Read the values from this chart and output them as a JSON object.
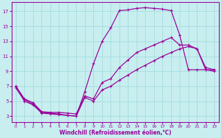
{
  "xlabel": "Windchill (Refroidissement éolien,°C)",
  "bg_color": "#c8eef0",
  "grid_color": "#a8dde0",
  "line_color": "#990099",
  "xlim": [
    -0.5,
    23.5
  ],
  "ylim": [
    2.2,
    18.2
  ],
  "xticks": [
    0,
    1,
    2,
    3,
    4,
    5,
    6,
    7,
    8,
    9,
    10,
    11,
    12,
    13,
    14,
    15,
    16,
    17,
    18,
    19,
    20,
    21,
    22,
    23
  ],
  "yticks": [
    3,
    5,
    7,
    9,
    11,
    13,
    15,
    17
  ],
  "line1_x": [
    0,
    1,
    2,
    3,
    4,
    5,
    6,
    7,
    8,
    9,
    10,
    11,
    12,
    13,
    14,
    15,
    16,
    17,
    18,
    19,
    20,
    21,
    22,
    23
  ],
  "line1_y": [
    7.0,
    5.2,
    4.6,
    3.5,
    3.4,
    3.3,
    3.1,
    3.0,
    6.3,
    10.0,
    13.0,
    14.8,
    17.1,
    17.2,
    17.4,
    17.5,
    17.4,
    17.3,
    17.1,
    13.8,
    9.2,
    9.2,
    9.2,
    9.2
  ],
  "line2_x": [
    0,
    1,
    2,
    3,
    4,
    5,
    6,
    7,
    8,
    9,
    10,
    11,
    12,
    13,
    14,
    15,
    16,
    17,
    18,
    19,
    20,
    21,
    22,
    23
  ],
  "line2_y": [
    7.0,
    5.3,
    4.8,
    3.6,
    3.5,
    3.5,
    3.4,
    3.3,
    5.7,
    5.3,
    7.5,
    8.0,
    9.5,
    10.5,
    11.5,
    12.0,
    12.5,
    13.0,
    13.5,
    12.5,
    12.5,
    12.0,
    9.5,
    9.2
  ],
  "line3_x": [
    0,
    1,
    2,
    3,
    4,
    5,
    6,
    7,
    8,
    9,
    10,
    11,
    12,
    13,
    14,
    15,
    16,
    17,
    18,
    19,
    20,
    21,
    22,
    23
  ],
  "line3_y": [
    6.8,
    5.0,
    4.5,
    3.4,
    3.3,
    3.2,
    3.1,
    3.0,
    5.5,
    5.0,
    6.5,
    7.0,
    7.8,
    8.5,
    9.2,
    9.8,
    10.4,
    11.0,
    11.5,
    12.0,
    12.3,
    12.0,
    9.2,
    9.0
  ]
}
